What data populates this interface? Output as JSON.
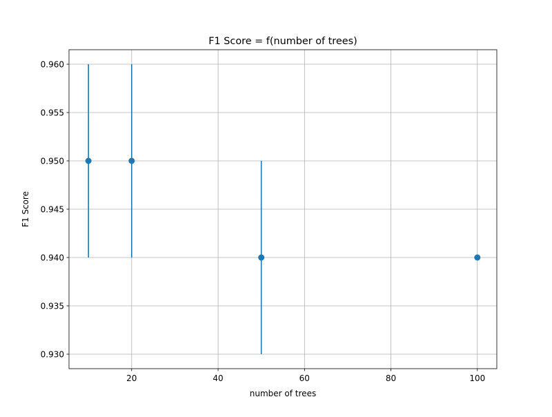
{
  "chart_data": {
    "type": "scatter",
    "title": "F1 Score = f(number of trees)",
    "xlabel": "number of trees",
    "ylabel": "F1 Score",
    "xlim": [
      5.5,
      104.5
    ],
    "ylim": [
      0.9285,
      0.9615
    ],
    "xticks": [
      20,
      40,
      60,
      80,
      100
    ],
    "yticks": [
      0.93,
      0.935,
      0.94,
      0.945,
      0.95,
      0.955,
      0.96
    ],
    "xtick_labels": [
      "20",
      "40",
      "60",
      "80",
      "100"
    ],
    "ytick_labels": [
      "0.930",
      "0.935",
      "0.940",
      "0.945",
      "0.950",
      "0.955",
      "0.960"
    ],
    "grid": true,
    "series": [
      {
        "color": "#1f77b4",
        "points": [
          {
            "x": 10,
            "y": 0.95,
            "yerr": 0.01
          },
          {
            "x": 20,
            "y": 0.95,
            "yerr": 0.01
          },
          {
            "x": 50,
            "y": 0.94,
            "yerr": 0.01
          },
          {
            "x": 100,
            "y": 0.94,
            "yerr": 0.0
          }
        ]
      }
    ]
  }
}
